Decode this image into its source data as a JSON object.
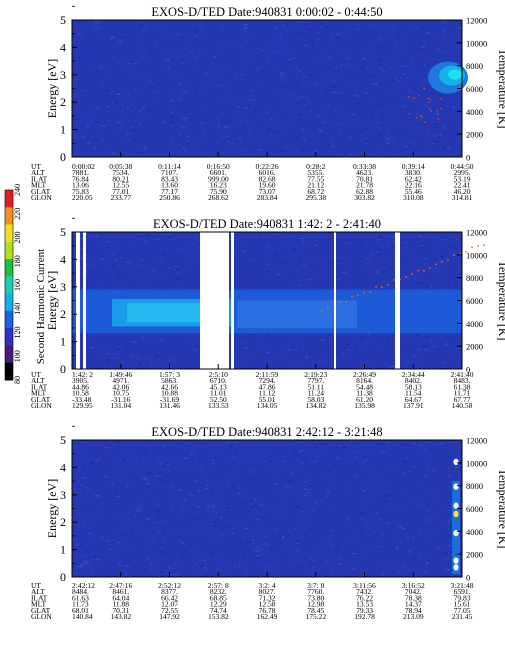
{
  "chart_data": [
    {
      "type": "heatmap",
      "title": "EXOS-D/TED  Date:940831  0:00:02 - 0:44:50",
      "ylabel": "Energy [eV]",
      "y2label": "Temperature [K]",
      "ylim": [
        0,
        5
      ],
      "y2lim": [
        0,
        12000
      ],
      "yticks": [
        "0",
        "1",
        "2",
        "3",
        "4",
        "5"
      ],
      "y2ticks": [
        "0",
        "2000",
        "4000",
        "6000",
        "8000",
        "10000",
        "12000"
      ],
      "ephemeris_labels": [
        "UT",
        "ALT",
        "ILAT",
        "MLT",
        "GLAT",
        "GLON"
      ],
      "ephemeris": [
        [
          "0:00:02",
          "7881.",
          "76.84",
          "13.06",
          "75.83",
          "220.05"
        ],
        [
          "0:05:38",
          "7534.",
          "80.21",
          "12.55",
          "77.01",
          "233.77"
        ],
        [
          "0:11:14",
          "7107.",
          "83.43",
          "13.60",
          "77.17",
          "250.86"
        ],
        [
          "0:16:50",
          "6601.",
          "999.00",
          "16.23",
          "75.90",
          "268.62"
        ],
        [
          "0:22:26",
          "6016.",
          "82.68",
          "19.60",
          "73.07",
          "283.84"
        ],
        [
          "0:28:2",
          "5355.",
          "77.55",
          "21.12",
          "68.72",
          "295.38"
        ],
        [
          "0:33:38",
          "4623.",
          "70.81",
          "21.78",
          "62.88",
          "303.82"
        ],
        [
          "0:39:14",
          "3830.",
          "62.42",
          "22.16",
          "55.46",
          "310.08"
        ],
        [
          "0:44:50",
          "2995.",
          "53.19",
          "22.41",
          "46.20",
          "314.81"
        ]
      ]
    },
    {
      "type": "heatmap",
      "title": "EXOS-D/TED  Date:940831  1:42: 2 - 2:41:40",
      "ylabel": "Energy [eV]",
      "y2label": "Temperature [K]",
      "ylim": [
        0,
        5
      ],
      "y2lim": [
        0,
        12000
      ],
      "yticks": [
        "0",
        "1",
        "2",
        "3",
        "4",
        "5"
      ],
      "y2ticks": [
        "0",
        "2000",
        "4000",
        "6000",
        "8000",
        "10000",
        "12000"
      ],
      "ephemeris_labels": [
        "UT",
        "ALT",
        "ILAT",
        "MLT",
        "GLAT",
        "GLON"
      ],
      "ephemeris": [
        [
          "1:42: 2",
          "3905.",
          "44.86",
          "10.58",
          "-33.48",
          "129.95"
        ],
        [
          "1:49:46",
          "4971.",
          "42.06",
          "10.75",
          "-31.16",
          "131.04"
        ],
        [
          "1:57: 3",
          "5863.",
          "42.66",
          "10.88",
          "-31.69",
          "131.46"
        ],
        [
          "2:5:10",
          "6710.",
          "45.13",
          "11.01",
          "52.50",
          "133.53"
        ],
        [
          "2:11:59",
          "7294.",
          "47.86",
          "11.12",
          "55.01",
          "134.05"
        ],
        [
          "2:19:23",
          "7797.",
          "51.11",
          "11.24",
          "58.03",
          "134.82"
        ],
        [
          "2:26:49",
          "8164.",
          "54.48",
          "11.38",
          "61.20",
          "135.98"
        ],
        [
          "2:34:44",
          "8402.",
          "58.13",
          "11.54",
          "64.67",
          "137.91"
        ],
        [
          "2:41:40",
          "8483.",
          "61.38",
          "11.71",
          "67.77",
          "140.58"
        ]
      ],
      "extra_ylabel": "Second Harmonic Current",
      "colorbar_ticks": [
        "80",
        "100",
        "120",
        "140",
        "160",
        "180",
        "200",
        "220",
        "240"
      ]
    },
    {
      "type": "heatmap",
      "title": "EXOS-D/TED  Date:940831  2:42:12 - 3:21:48",
      "ylabel": "Energy [eV]",
      "y2label": "Temperature [K]",
      "ylim": [
        0,
        5
      ],
      "y2lim": [
        0,
        12000
      ],
      "yticks": [
        "0",
        "1",
        "2",
        "3",
        "4",
        "5"
      ],
      "y2ticks": [
        "0",
        "2000",
        "4000",
        "6000",
        "8000",
        "10000",
        "12000"
      ],
      "ephemeris_labels": [
        "UT",
        "ALT",
        "ILAT",
        "MLT",
        "GLAT",
        "GLON"
      ],
      "ephemeris": [
        [
          "2:42:12",
          "8484.",
          "61.63",
          "11.73",
          "68.01",
          "140.84"
        ],
        [
          "2:47:16",
          "8461.",
          "64.04",
          "11.88",
          "70.31",
          "143.82"
        ],
        [
          "2:52:12",
          "8377.",
          "66.42",
          "12.07",
          "72.55",
          "147.92"
        ],
        [
          "2:57: 8",
          "8232.",
          "68.85",
          "12.29",
          "74.74",
          "153.82"
        ],
        [
          "3:2: 4",
          "8027.",
          "71.32",
          "12.58",
          "76.78",
          "162.49"
        ],
        [
          "3:7: 0",
          "7760.",
          "73.80",
          "12.98",
          "78.45",
          "175.22"
        ],
        [
          "3:11:56",
          "7432.",
          "76.22",
          "13.53",
          "79.33",
          "192.78"
        ],
        [
          "3:16:52",
          "7042.",
          "78.38",
          "14.37",
          "78.94",
          "213.09"
        ],
        [
          "3:21:48",
          "6591.",
          "79.83",
          "15.61",
          "77.05",
          "231.45"
        ]
      ]
    }
  ]
}
